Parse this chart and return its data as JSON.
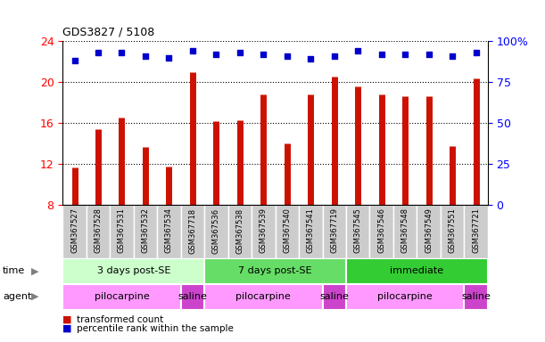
{
  "title": "GDS3827 / 5108",
  "samples": [
    "GSM367527",
    "GSM367528",
    "GSM367531",
    "GSM367532",
    "GSM367534",
    "GSM367718",
    "GSM367536",
    "GSM367538",
    "GSM367539",
    "GSM367540",
    "GSM367541",
    "GSM367719",
    "GSM367545",
    "GSM367546",
    "GSM367548",
    "GSM367549",
    "GSM367551",
    "GSM367721"
  ],
  "bar_values": [
    11.7,
    15.4,
    16.5,
    13.7,
    11.8,
    21.0,
    16.2,
    16.3,
    18.8,
    14.0,
    18.8,
    20.5,
    19.6,
    18.8,
    18.6,
    18.6,
    13.8,
    20.4
  ],
  "dot_values": [
    88,
    93,
    93,
    91,
    90,
    94,
    92,
    93,
    92,
    91,
    89,
    91,
    94,
    92,
    92,
    92,
    91,
    93
  ],
  "bar_color": "#cc1100",
  "dot_color": "#0000cc",
  "ylim_left": [
    8,
    24
  ],
  "ylim_right": [
    0,
    100
  ],
  "yticks_left": [
    8,
    12,
    16,
    20,
    24
  ],
  "yticks_right": [
    0,
    25,
    50,
    75,
    100
  ],
  "ytick_labels_right": [
    "0",
    "25",
    "50",
    "75",
    "100%"
  ],
  "tick_area_color": "#dddddd",
  "time_groups": [
    {
      "label": "3 days post-SE",
      "start": 0,
      "end": 6,
      "color": "#ccffcc"
    },
    {
      "label": "7 days post-SE",
      "start": 6,
      "end": 12,
      "color": "#66dd66"
    },
    {
      "label": "immediate",
      "start": 12,
      "end": 18,
      "color": "#33cc33"
    }
  ],
  "agent_groups": [
    {
      "label": "pilocarpine",
      "start": 0,
      "end": 5,
      "color": "#ff99ff"
    },
    {
      "label": "saline",
      "start": 5,
      "end": 6,
      "color": "#cc44cc"
    },
    {
      "label": "pilocarpine",
      "start": 6,
      "end": 11,
      "color": "#ff99ff"
    },
    {
      "label": "saline",
      "start": 11,
      "end": 12,
      "color": "#cc44cc"
    },
    {
      "label": "pilocarpine",
      "start": 12,
      "end": 17,
      "color": "#ff99ff"
    },
    {
      "label": "saline",
      "start": 17,
      "end": 18,
      "color": "#cc44cc"
    }
  ],
  "legend_items": [
    {
      "label": "transformed count",
      "color": "#cc1100"
    },
    {
      "label": "percentile rank within the sample",
      "color": "#0000cc"
    }
  ],
  "background_color": "#ffffff",
  "bar_bottom": 8,
  "xticklabel_bg": "#cccccc"
}
